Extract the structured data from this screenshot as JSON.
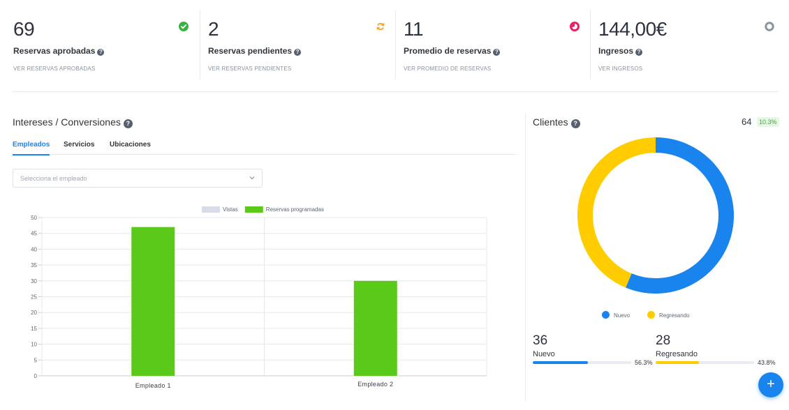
{
  "stats": [
    {
      "value": "69",
      "label": "Reservas aprobadas",
      "link": "VER RESERVAS APROBADAS",
      "icon": "check-circle-icon",
      "color": "#3cb043"
    },
    {
      "value": "2",
      "label": "Reservas pendientes",
      "link": "VER RESERVAS PENDIENTES",
      "icon": "refresh-icon",
      "color": "#f5a623"
    },
    {
      "value": "11",
      "label": "Promedio de reservas",
      "link": "VER PROMEDIO DE RESERVAS",
      "icon": "pie-icon",
      "color": "#e91e63"
    },
    {
      "value": "144,00€",
      "label": "Ingresos",
      "link": "VER INGRESOS",
      "icon": "ring-icon",
      "color": "#8b949e"
    }
  ],
  "interests": {
    "title": "Intereses / Conversiones",
    "tabs": [
      {
        "label": "Empleados",
        "active": true
      },
      {
        "label": "Servicios",
        "active": false
      },
      {
        "label": "Ubicaciones",
        "active": false
      }
    ],
    "select_placeholder": "Selecciona el empleado"
  },
  "chart_data": {
    "type": "bar",
    "categories": [
      "Empleado 1",
      "Empleado 2"
    ],
    "series": [
      {
        "name": "Vistas",
        "values": [
          0,
          0
        ],
        "color": "#d6dde8"
      },
      {
        "name": "Reservas programadas",
        "values": [
          47,
          30
        ],
        "color": "#5ac91a"
      }
    ],
    "ylim": [
      0,
      50
    ],
    "yticks": [
      "0",
      "5",
      "10",
      "15",
      "20",
      "25",
      "30",
      "35",
      "40",
      "45",
      "50"
    ],
    "legend": "top-center",
    "grid": true
  },
  "clients": {
    "title": "Clientes",
    "count": "64",
    "badge": "10.3%",
    "donut": [
      {
        "name": "Nuevo",
        "value": 36,
        "color": "#1a84ee"
      },
      {
        "name": "Regresando",
        "value": 28,
        "color": "#ffcc00"
      }
    ],
    "new": {
      "num": "36",
      "label": "Nuevo",
      "pct": "56.3%",
      "fraction": 0.563
    },
    "returning": {
      "num": "28",
      "label": "Regresando",
      "pct": "43.8%",
      "fraction": 0.438
    }
  },
  "fab": {
    "label": "+"
  }
}
